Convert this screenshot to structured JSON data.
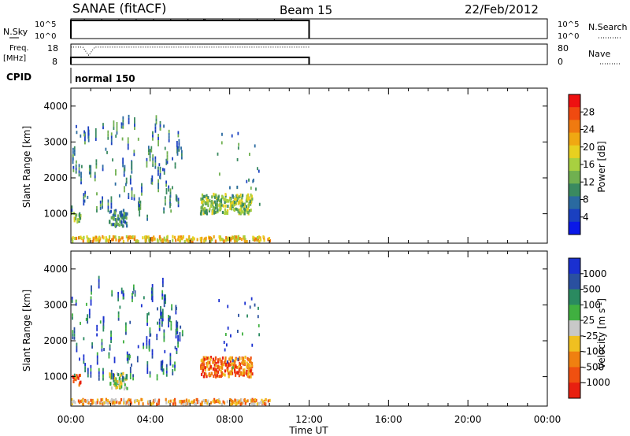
{
  "header": {
    "station": "SANAE (fitACF)",
    "beam": "Beam 15",
    "date": "22/Feb/2012"
  },
  "panels": {
    "nsky": {
      "left_label": "N.Sky",
      "left_ticks": [
        "10^5",
        "10^0"
      ],
      "right_ticks": [
        "10^5",
        "10^0"
      ],
      "right_label": "N.Search"
    },
    "freq": {
      "left_label_line1": "Freq.",
      "left_label_line2": "[MHz]",
      "left_ticks": [
        "18",
        "8"
      ],
      "right_ticks": [
        "80",
        "0"
      ],
      "right_label": "Nave"
    },
    "cpid": {
      "label": "CPID",
      "program": "normal 150"
    }
  },
  "x_axis": {
    "label": "Time UT",
    "tick_labels": [
      "00:00",
      "04:00",
      "08:00",
      "12:00",
      "16:00",
      "20:00",
      "00:00"
    ],
    "range_hours": [
      0,
      24
    ]
  },
  "power_colorbar": {
    "label": "Power [dB]",
    "ticks": [
      "28",
      "24",
      "20",
      "16",
      "12",
      "8",
      "4"
    ],
    "colors": [
      "#ee1111",
      "#f04a10",
      "#f07a10",
      "#f0a812",
      "#e8d020",
      "#a8d040",
      "#70b050",
      "#3a8a60",
      "#2a6aa0",
      "#1a40c0",
      "#0a18e8"
    ]
  },
  "velocity_colorbar": {
    "label": "Velocity [m s^-1]",
    "ticks": [
      "1000",
      "500",
      "100",
      "25",
      "-25",
      "-100",
      "-500",
      "-1000"
    ],
    "colors": [
      "#1a30d0",
      "#2a50a0",
      "#2a8a60",
      "#40b040",
      "#c8c8c8",
      "#f0c020",
      "#f08010",
      "#f05010",
      "#e82010"
    ]
  },
  "chart_data": [
    {
      "type": "line",
      "name": "N.Sky / N.Search",
      "x": [
        0.0,
        12.0
      ],
      "y_log_range": [
        0,
        5
      ],
      "series": [
        {
          "name": "",
          "style": "solid",
          "x": [
            0.0,
            0.0,
            12.0,
            12.0
          ],
          "y": [
            0,
            4.6,
            4.6,
            0
          ]
        }
      ]
    },
    {
      "type": "line",
      "name": "Freq / Nave",
      "series": [
        {
          "name": "",
          "style": "solid",
          "x": [
            0.0,
            0.0,
            12.0,
            12.0
          ],
          "y": [
            8,
            11.5,
            11.5,
            8
          ]
        },
        {
          "name": "",
          "style": "dotted",
          "x": [
            0.0,
            0.6,
            0.9,
            1.2,
            1.5,
            12.0
          ],
          "y": [
            16.5,
            16.5,
            12.5,
            16.5,
            16.5,
            16.5
          ]
        }
      ],
      "ylim": [
        8,
        18
      ]
    },
    {
      "type": "heatmap",
      "name": "Power",
      "ylabel": "Slant Range [km]",
      "y_ticks": [
        1000,
        2000,
        3000,
        4000
      ],
      "ylim": [
        180,
        4500
      ],
      "xlim": [
        0,
        24
      ],
      "regions": [
        {
          "t0": 0.05,
          "t1": 0.45,
          "r0": 700,
          "r1": 1000,
          "level": 2
        },
        {
          "t0": 1.9,
          "t1": 2.8,
          "r0": 600,
          "r1": 1050,
          "level": 1
        },
        {
          "t0": 6.5,
          "t1": 9.1,
          "r0": 950,
          "r1": 1500,
          "level": 2
        },
        {
          "t0": 0.0,
          "t1": 10.0,
          "r0": 180,
          "r1": 320,
          "level": 3
        }
      ],
      "data_extent_hours": [
        0.0,
        10.0
      ]
    },
    {
      "type": "heatmap",
      "name": "Velocity",
      "ylabel": "Slant Range [km]",
      "y_ticks": [
        1000,
        2000,
        3000,
        4000
      ],
      "ylim": [
        180,
        4500
      ],
      "xlim": [
        0,
        24
      ],
      "regions": [
        {
          "t0": 0.05,
          "t1": 0.45,
          "r0": 700,
          "r1": 1000,
          "level": 6
        },
        {
          "t0": 1.9,
          "t1": 2.8,
          "r0": 600,
          "r1": 1050,
          "level": 3
        },
        {
          "t0": 6.5,
          "t1": 9.1,
          "r0": 950,
          "r1": 1500,
          "level": 6
        },
        {
          "t0": 0.0,
          "t1": 10.0,
          "r0": 180,
          "r1": 320,
          "level": 5
        }
      ],
      "data_extent_hours": [
        0.0,
        10.0
      ]
    }
  ]
}
